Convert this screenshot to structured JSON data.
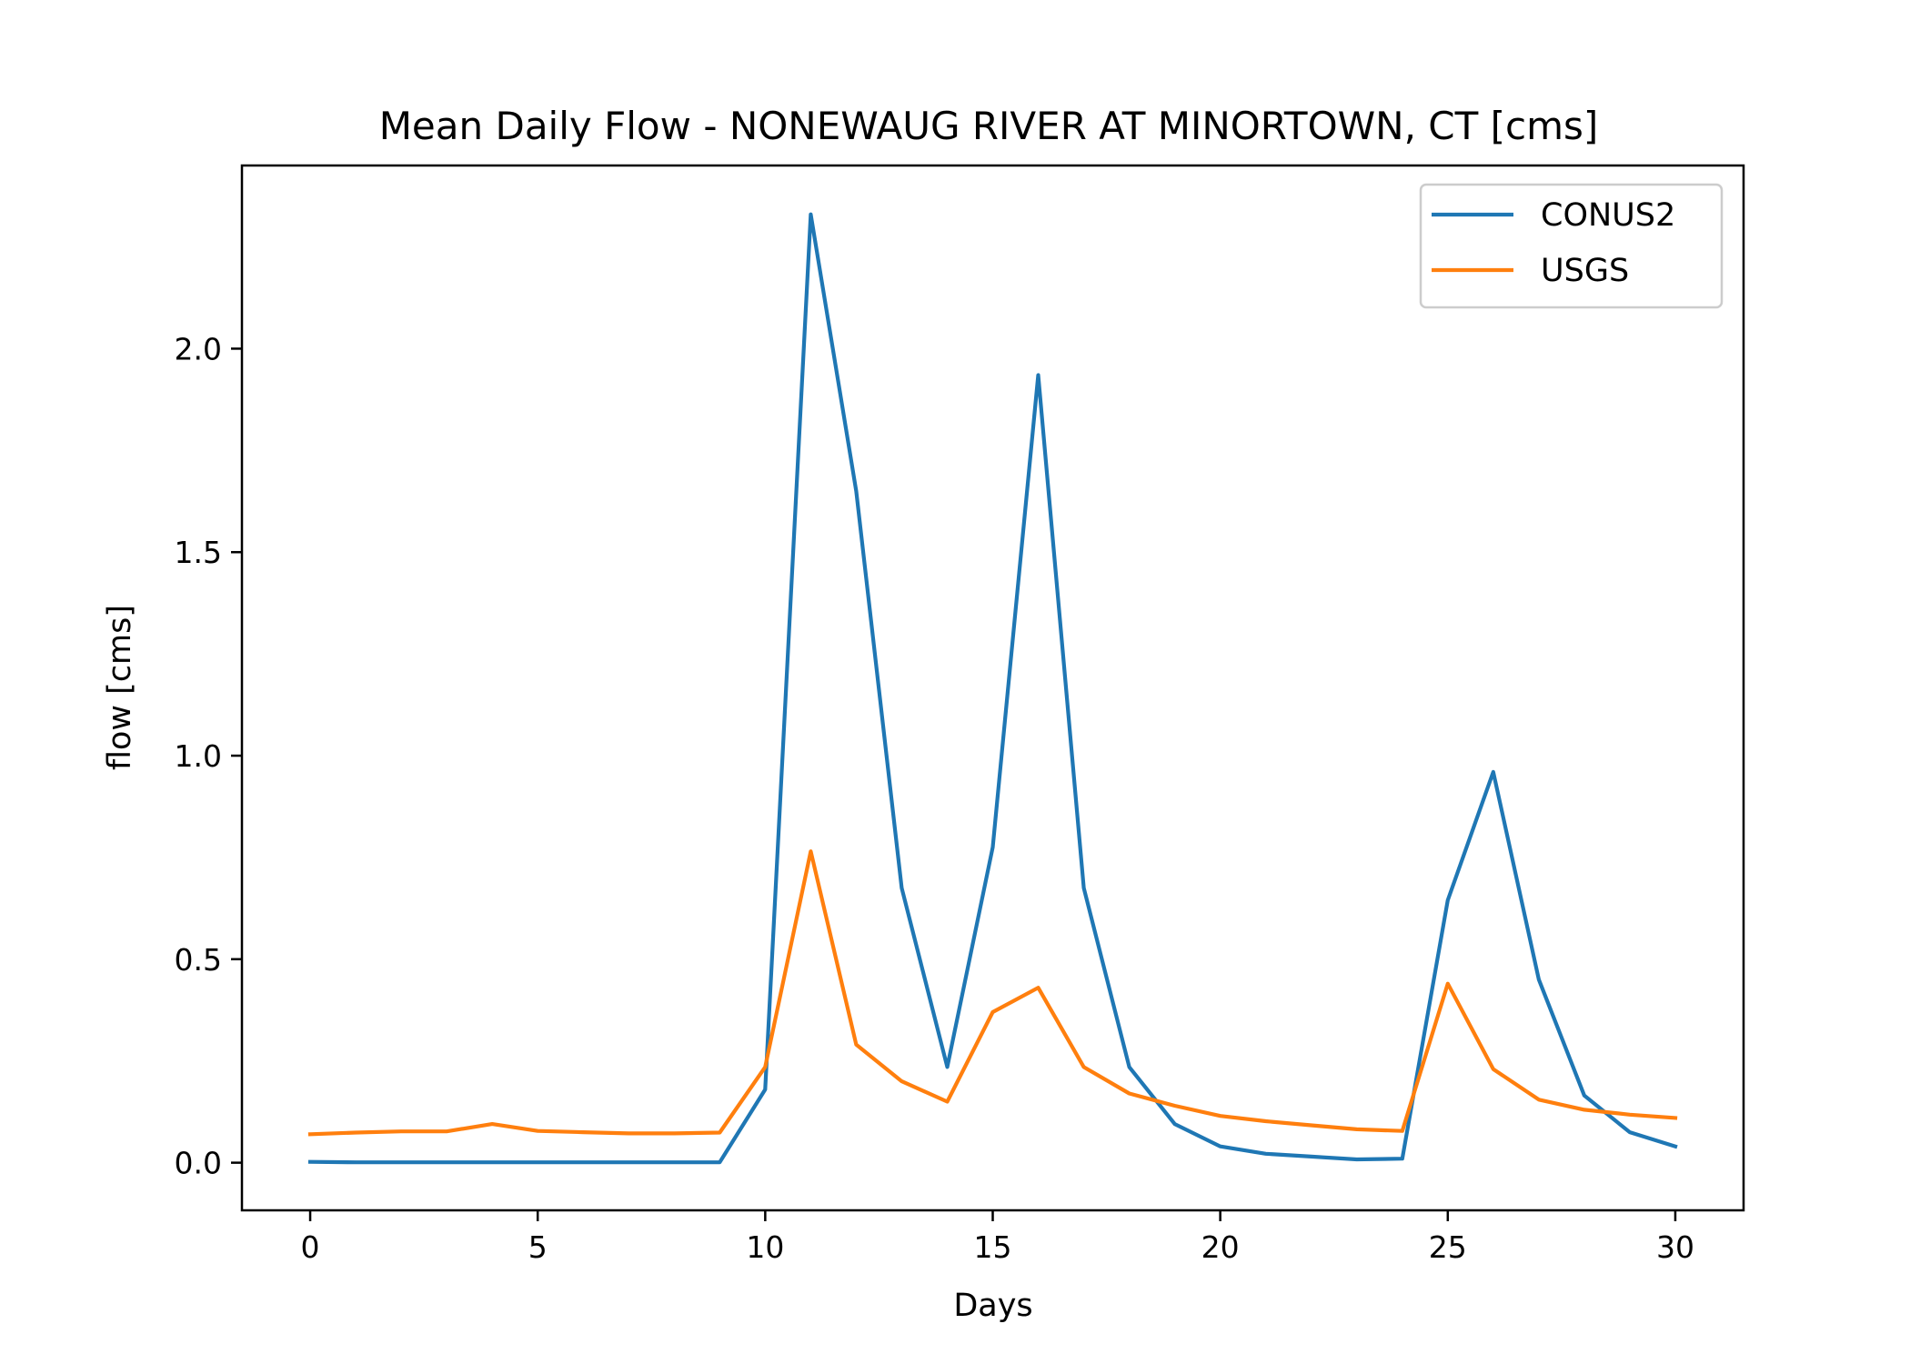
{
  "chart_data": {
    "type": "line",
    "title": "Mean Daily Flow - NONEWAUG RIVER AT MINORTOWN, CT [cms]",
    "xlabel": "Days",
    "ylabel": "flow [cms]",
    "xlim": [
      -1.5,
      31.5
    ],
    "ylim": [
      -0.117,
      2.45
    ],
    "xticks": [
      0,
      5,
      10,
      15,
      20,
      25,
      30
    ],
    "xtick_labels": [
      "0",
      "5",
      "10",
      "15",
      "20",
      "25",
      "30"
    ],
    "yticks": [
      0.0,
      0.5,
      1.0,
      1.5,
      2.0
    ],
    "ytick_labels": [
      "0.0",
      "0.5",
      "1.0",
      "1.5",
      "2.0"
    ],
    "grid": false,
    "legend_position": "top-right",
    "x": [
      0,
      1,
      2,
      3,
      4,
      5,
      6,
      7,
      8,
      9,
      10,
      11,
      12,
      13,
      14,
      15,
      16,
      17,
      18,
      19,
      20,
      21,
      22,
      23,
      24,
      25,
      26,
      27,
      28,
      29,
      30
    ],
    "series": [
      {
        "name": "CONUS2",
        "color": "#1f77b4",
        "values": [
          0.002,
          0.001,
          0.001,
          0.001,
          0.001,
          0.001,
          0.001,
          0.001,
          0.001,
          0.001,
          0.18,
          2.33,
          1.65,
          0.675,
          0.235,
          0.775,
          1.935,
          0.675,
          0.235,
          0.095,
          0.04,
          0.022,
          0.015,
          0.008,
          0.01,
          0.645,
          0.96,
          0.45,
          0.165,
          0.075,
          0.04
        ]
      },
      {
        "name": "USGS",
        "color": "#ff7f0e",
        "values": [
          0.07,
          0.074,
          0.077,
          0.077,
          0.095,
          0.078,
          0.075,
          0.072,
          0.072,
          0.074,
          0.235,
          0.765,
          0.29,
          0.2,
          0.15,
          0.37,
          0.43,
          0.235,
          0.17,
          0.14,
          0.115,
          0.102,
          0.092,
          0.082,
          0.078,
          0.44,
          0.23,
          0.155,
          0.13,
          0.118,
          0.11
        ]
      }
    ]
  }
}
